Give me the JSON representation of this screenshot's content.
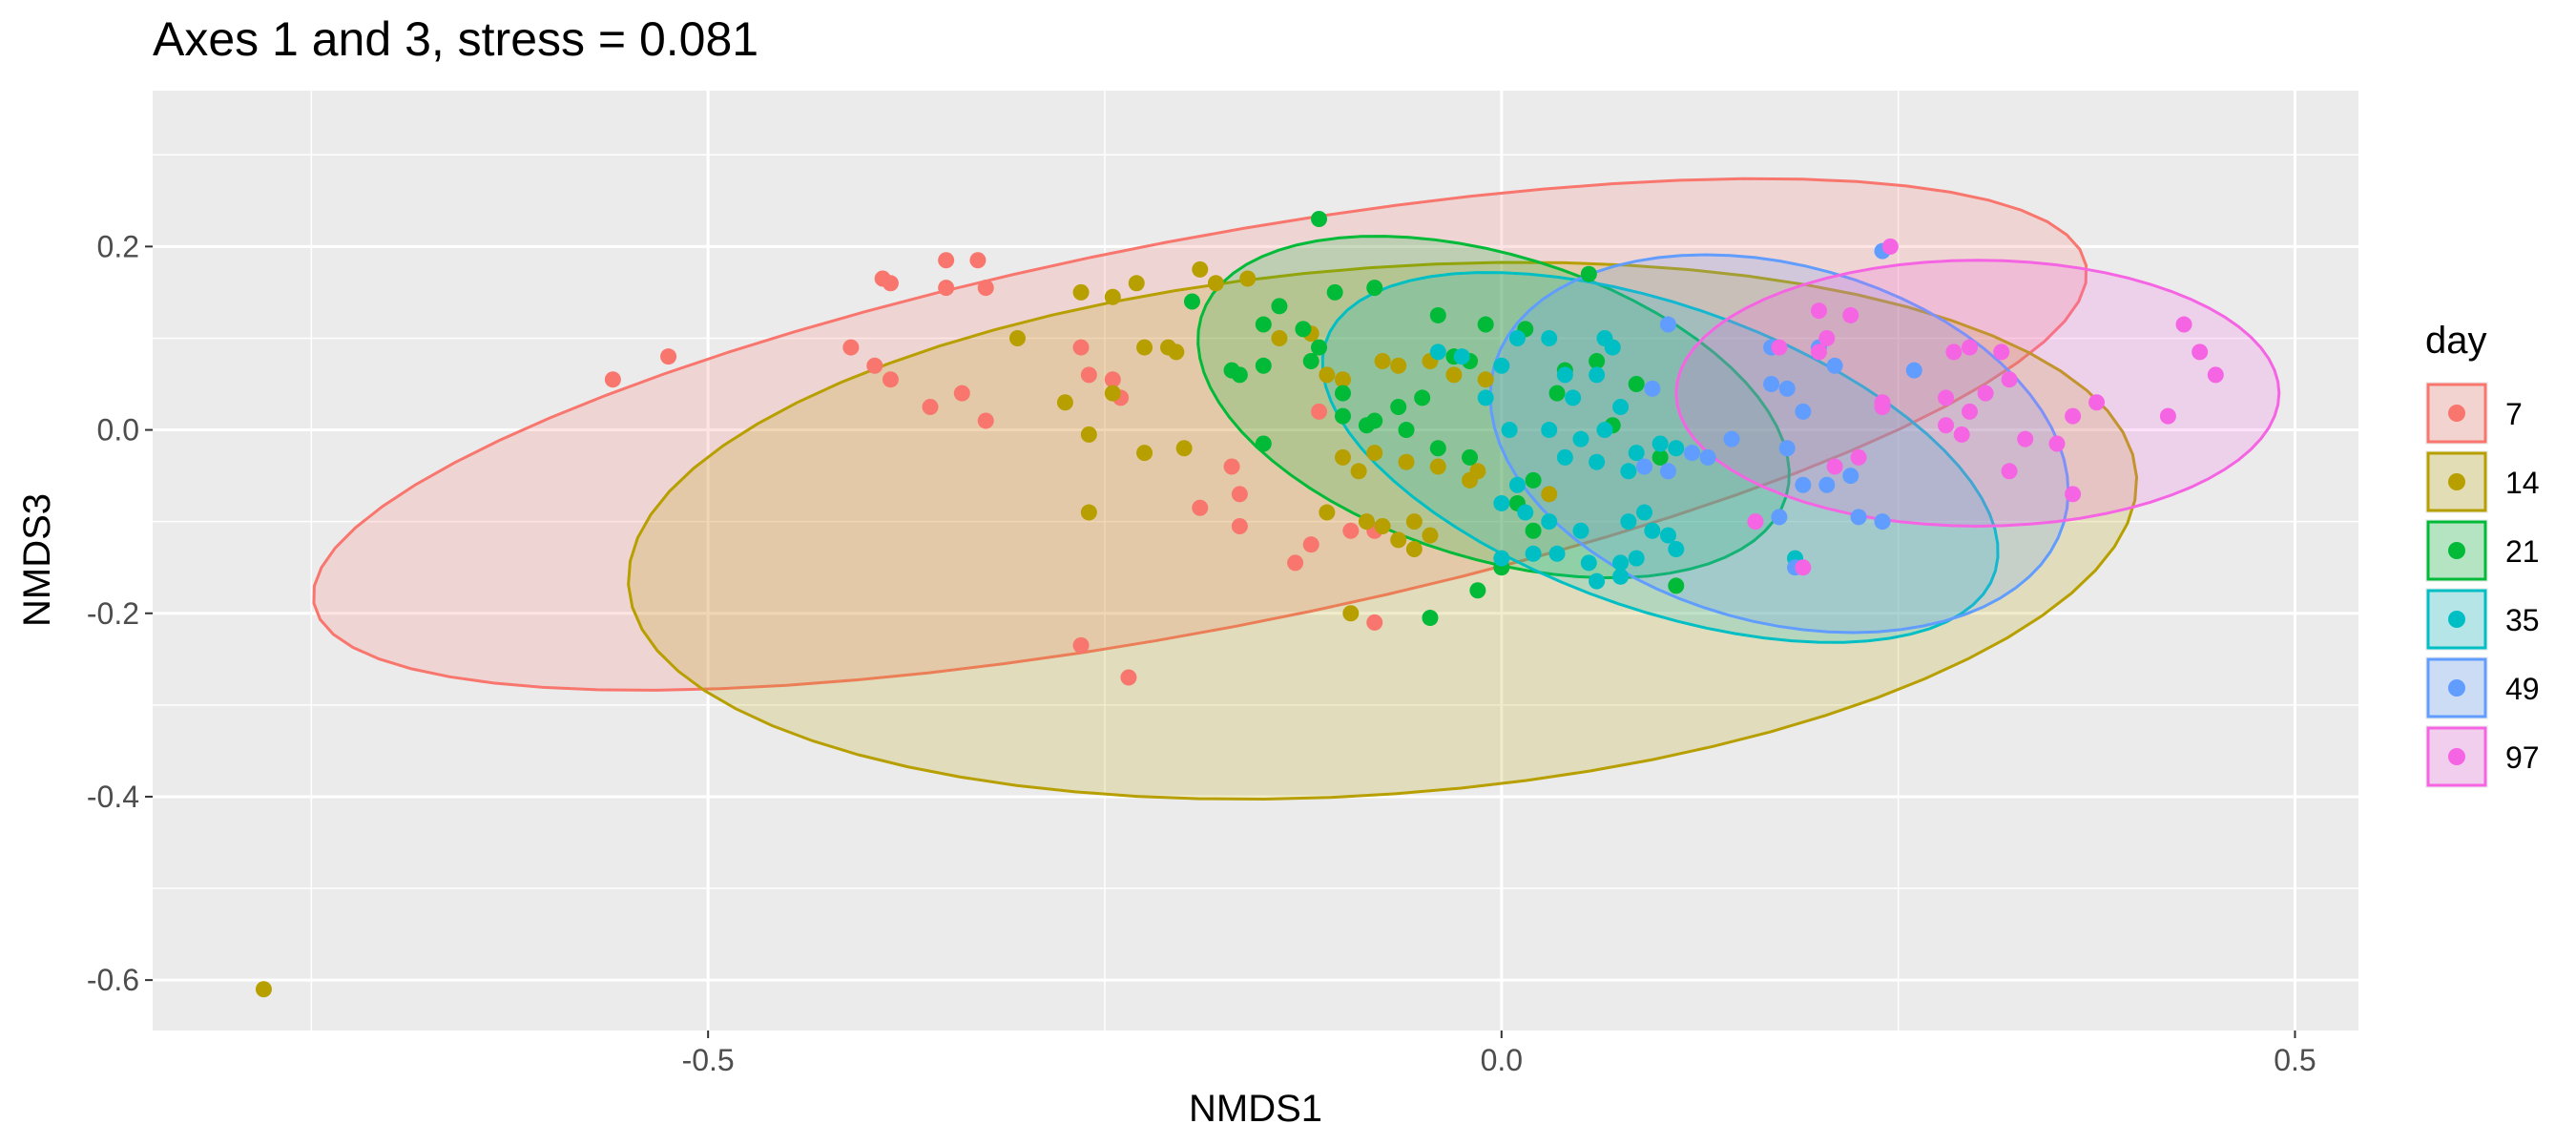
{
  "chart_data": {
    "type": "scatter",
    "title": "Axes 1 and 3, stress = 0.081",
    "xlabel": "NMDS1",
    "ylabel": "NMDS3",
    "xlim": [
      -0.85,
      0.54
    ],
    "ylim": [
      -0.655,
      0.37
    ],
    "x_ticks": [
      -0.5,
      0.0,
      0.5
    ],
    "x_tick_labels": [
      "-0.5",
      "0.0",
      "0.5"
    ],
    "y_ticks": [
      -0.6,
      -0.4,
      -0.2,
      0.0,
      0.2
    ],
    "y_tick_labels": [
      "-0.6",
      "-0.4",
      "-0.2",
      "0.0",
      "0.2"
    ],
    "grid": true,
    "legend": {
      "title": "day",
      "placement": "right"
    },
    "series": [
      {
        "name": "7",
        "color": "#F8766D",
        "ellipse": {
          "cx": -0.19,
          "cy": -0.005,
          "rx": 0.59,
          "ry": 0.205,
          "angle_deg": 20
        },
        "points": [
          [
            -0.56,
            0.055
          ],
          [
            -0.525,
            0.08
          ],
          [
            -0.39,
            0.165
          ],
          [
            -0.385,
            0.16
          ],
          [
            -0.35,
            0.185
          ],
          [
            -0.33,
            0.185
          ],
          [
            -0.35,
            0.155
          ],
          [
            -0.325,
            0.155
          ],
          [
            -0.41,
            0.09
          ],
          [
            -0.395,
            0.07
          ],
          [
            -0.385,
            0.055
          ],
          [
            -0.36,
            0.025
          ],
          [
            -0.34,
            0.04
          ],
          [
            -0.325,
            0.01
          ],
          [
            -0.265,
            0.09
          ],
          [
            -0.26,
            0.06
          ],
          [
            -0.245,
            0.055
          ],
          [
            -0.24,
            0.035
          ],
          [
            -0.19,
            -0.085
          ],
          [
            -0.17,
            -0.04
          ],
          [
            -0.165,
            -0.105
          ],
          [
            -0.165,
            -0.07
          ],
          [
            -0.13,
            -0.145
          ],
          [
            -0.12,
            -0.125
          ],
          [
            -0.115,
            0.02
          ],
          [
            -0.095,
            -0.11
          ],
          [
            -0.08,
            -0.11
          ],
          [
            -0.08,
            -0.21
          ],
          [
            -0.265,
            -0.235
          ],
          [
            -0.235,
            -0.27
          ]
        ]
      },
      {
        "name": "14",
        "color": "#B79F00",
        "ellipse": {
          "cx": -0.075,
          "cy": -0.11,
          "rx": 0.48,
          "ry": 0.285,
          "angle_deg": 10
        },
        "points": [
          [
            -0.78,
            -0.61
          ],
          [
            -0.305,
            0.1
          ],
          [
            -0.265,
            0.15
          ],
          [
            -0.245,
            0.145
          ],
          [
            -0.23,
            0.16
          ],
          [
            -0.225,
            0.09
          ],
          [
            -0.21,
            0.09
          ],
          [
            -0.205,
            0.085
          ],
          [
            -0.19,
            0.175
          ],
          [
            -0.18,
            0.16
          ],
          [
            -0.16,
            0.165
          ],
          [
            -0.14,
            0.1
          ],
          [
            -0.12,
            0.105
          ],
          [
            -0.11,
            0.06
          ],
          [
            -0.1,
            0.055
          ],
          [
            -0.075,
            0.075
          ],
          [
            -0.065,
            0.07
          ],
          [
            -0.045,
            0.075
          ],
          [
            -0.03,
            0.06
          ],
          [
            -0.01,
            0.055
          ],
          [
            -0.275,
            0.03
          ],
          [
            -0.26,
            -0.005
          ],
          [
            -0.245,
            0.04
          ],
          [
            -0.225,
            -0.025
          ],
          [
            -0.2,
            -0.02
          ],
          [
            -0.1,
            -0.03
          ],
          [
            -0.09,
            -0.045
          ],
          [
            -0.08,
            -0.025
          ],
          [
            -0.06,
            -0.035
          ],
          [
            -0.04,
            -0.04
          ],
          [
            -0.02,
            -0.055
          ],
          [
            -0.015,
            -0.045
          ],
          [
            0.03,
            -0.07
          ],
          [
            -0.11,
            -0.09
          ],
          [
            -0.085,
            -0.1
          ],
          [
            -0.075,
            -0.105
          ],
          [
            -0.065,
            -0.12
          ],
          [
            -0.055,
            -0.1
          ],
          [
            -0.045,
            -0.115
          ],
          [
            -0.055,
            -0.13
          ],
          [
            -0.26,
            -0.09
          ],
          [
            -0.095,
            -0.2
          ]
        ]
      },
      {
        "name": "21",
        "color": "#00BA38",
        "ellipse": {
          "cx": -0.005,
          "cy": 0.025,
          "rx": 0.22,
          "ry": 0.145,
          "angle_deg": -45
        },
        "points": [
          [
            -0.115,
            0.23
          ],
          [
            -0.105,
            0.15
          ],
          [
            -0.08,
            0.155
          ],
          [
            -0.04,
            0.125
          ],
          [
            -0.01,
            0.115
          ],
          [
            0.015,
            0.11
          ],
          [
            0.055,
            0.17
          ],
          [
            -0.195,
            0.14
          ],
          [
            -0.14,
            0.135
          ],
          [
            -0.15,
            0.115
          ],
          [
            -0.125,
            0.11
          ],
          [
            -0.115,
            0.09
          ],
          [
            -0.17,
            0.065
          ],
          [
            -0.165,
            0.06
          ],
          [
            -0.15,
            0.07
          ],
          [
            -0.12,
            0.075
          ],
          [
            -0.1,
            0.015
          ],
          [
            -0.085,
            0.005
          ],
          [
            -0.065,
            0.025
          ],
          [
            -0.05,
            0.035
          ],
          [
            -0.03,
            0.08
          ],
          [
            -0.02,
            0.075
          ],
          [
            0.04,
            0.065
          ],
          [
            0.06,
            0.075
          ],
          [
            -0.15,
            -0.015
          ],
          [
            -0.1,
            0.04
          ],
          [
            -0.08,
            0.01
          ],
          [
            -0.06,
            0.0
          ],
          [
            -0.04,
            -0.02
          ],
          [
            -0.02,
            -0.03
          ],
          [
            0.02,
            -0.055
          ],
          [
            0.035,
            0.04
          ],
          [
            0.07,
            0.005
          ],
          [
            0.085,
            0.05
          ],
          [
            0.1,
            -0.03
          ],
          [
            0.01,
            -0.08
          ],
          [
            0.02,
            -0.11
          ],
          [
            0.0,
            -0.15
          ],
          [
            -0.015,
            -0.175
          ],
          [
            -0.045,
            -0.205
          ],
          [
            0.11,
            -0.17
          ]
        ]
      },
      {
        "name": "35",
        "color": "#00BFC4",
        "ellipse": {
          "cx": 0.1,
          "cy": -0.03,
          "rx": 0.255,
          "ry": 0.145,
          "angle_deg": -42
        },
        "points": [
          [
            -0.04,
            0.085
          ],
          [
            -0.025,
            0.08
          ],
          [
            0.0,
            0.07
          ],
          [
            0.01,
            0.1
          ],
          [
            0.03,
            0.1
          ],
          [
            0.04,
            0.06
          ],
          [
            0.06,
            0.06
          ],
          [
            0.065,
            0.1
          ],
          [
            0.07,
            0.09
          ],
          [
            0.045,
            0.035
          ],
          [
            0.075,
            0.025
          ],
          [
            0.065,
            0.0
          ],
          [
            -0.01,
            0.035
          ],
          [
            0.005,
            0.0
          ],
          [
            0.03,
            0.0
          ],
          [
            0.05,
            -0.01
          ],
          [
            0.085,
            -0.025
          ],
          [
            0.1,
            -0.015
          ],
          [
            0.11,
            -0.02
          ],
          [
            0.04,
            -0.03
          ],
          [
            0.06,
            -0.035
          ],
          [
            0.08,
            -0.045
          ],
          [
            0.01,
            -0.06
          ],
          [
            0.0,
            -0.08
          ],
          [
            0.015,
            -0.09
          ],
          [
            0.03,
            -0.1
          ],
          [
            0.05,
            -0.11
          ],
          [
            0.08,
            -0.1
          ],
          [
            0.09,
            -0.09
          ],
          [
            0.095,
            -0.11
          ],
          [
            0.105,
            -0.115
          ],
          [
            0.0,
            -0.14
          ],
          [
            0.02,
            -0.135
          ],
          [
            0.035,
            -0.135
          ],
          [
            0.055,
            -0.145
          ],
          [
            0.075,
            -0.145
          ],
          [
            0.085,
            -0.14
          ],
          [
            0.11,
            -0.13
          ],
          [
            0.06,
            -0.165
          ],
          [
            0.075,
            -0.16
          ],
          [
            0.185,
            -0.14
          ]
        ]
      },
      {
        "name": "49",
        "color": "#619CFF",
        "ellipse": {
          "cx": 0.175,
          "cy": -0.015,
          "rx": 0.165,
          "ry": 0.22,
          "angle_deg": 32
        },
        "points": [
          [
            0.24,
            0.195
          ],
          [
            0.105,
            0.115
          ],
          [
            0.17,
            0.09
          ],
          [
            0.2,
            0.09
          ],
          [
            0.21,
            0.07
          ],
          [
            0.26,
            0.065
          ],
          [
            0.095,
            0.045
          ],
          [
            0.17,
            0.05
          ],
          [
            0.18,
            0.045
          ],
          [
            0.19,
            0.02
          ],
          [
            0.145,
            -0.01
          ],
          [
            0.18,
            -0.02
          ],
          [
            0.12,
            -0.025
          ],
          [
            0.13,
            -0.03
          ],
          [
            0.105,
            -0.045
          ],
          [
            0.09,
            -0.04
          ],
          [
            0.19,
            -0.06
          ],
          [
            0.205,
            -0.06
          ],
          [
            0.22,
            -0.05
          ],
          [
            0.175,
            -0.095
          ],
          [
            0.225,
            -0.095
          ],
          [
            0.24,
            -0.1
          ],
          [
            0.185,
            -0.15
          ]
        ]
      },
      {
        "name": "97",
        "color": "#F564E3",
        "ellipse": {
          "cx": 0.3,
          "cy": 0.04,
          "rx": 0.19,
          "ry": 0.145,
          "angle_deg": 0
        },
        "points": [
          [
            0.245,
            0.2
          ],
          [
            0.2,
            0.13
          ],
          [
            0.22,
            0.125
          ],
          [
            0.175,
            0.09
          ],
          [
            0.2,
            0.085
          ],
          [
            0.205,
            0.1
          ],
          [
            0.285,
            0.085
          ],
          [
            0.295,
            0.09
          ],
          [
            0.315,
            0.085
          ],
          [
            0.32,
            0.055
          ],
          [
            0.305,
            0.04
          ],
          [
            0.24,
            0.025
          ],
          [
            0.24,
            0.03
          ],
          [
            0.28,
            0.035
          ],
          [
            0.295,
            0.02
          ],
          [
            0.28,
            0.005
          ],
          [
            0.29,
            -0.005
          ],
          [
            0.33,
            -0.01
          ],
          [
            0.36,
            0.015
          ],
          [
            0.375,
            0.03
          ],
          [
            0.35,
            -0.015
          ],
          [
            0.32,
            -0.045
          ],
          [
            0.36,
            -0.07
          ],
          [
            0.43,
            0.115
          ],
          [
            0.44,
            0.085
          ],
          [
            0.45,
            0.06
          ],
          [
            0.42,
            0.015
          ],
          [
            0.21,
            -0.04
          ],
          [
            0.225,
            -0.03
          ],
          [
            0.16,
            -0.1
          ],
          [
            0.19,
            -0.15
          ]
        ]
      }
    ]
  }
}
